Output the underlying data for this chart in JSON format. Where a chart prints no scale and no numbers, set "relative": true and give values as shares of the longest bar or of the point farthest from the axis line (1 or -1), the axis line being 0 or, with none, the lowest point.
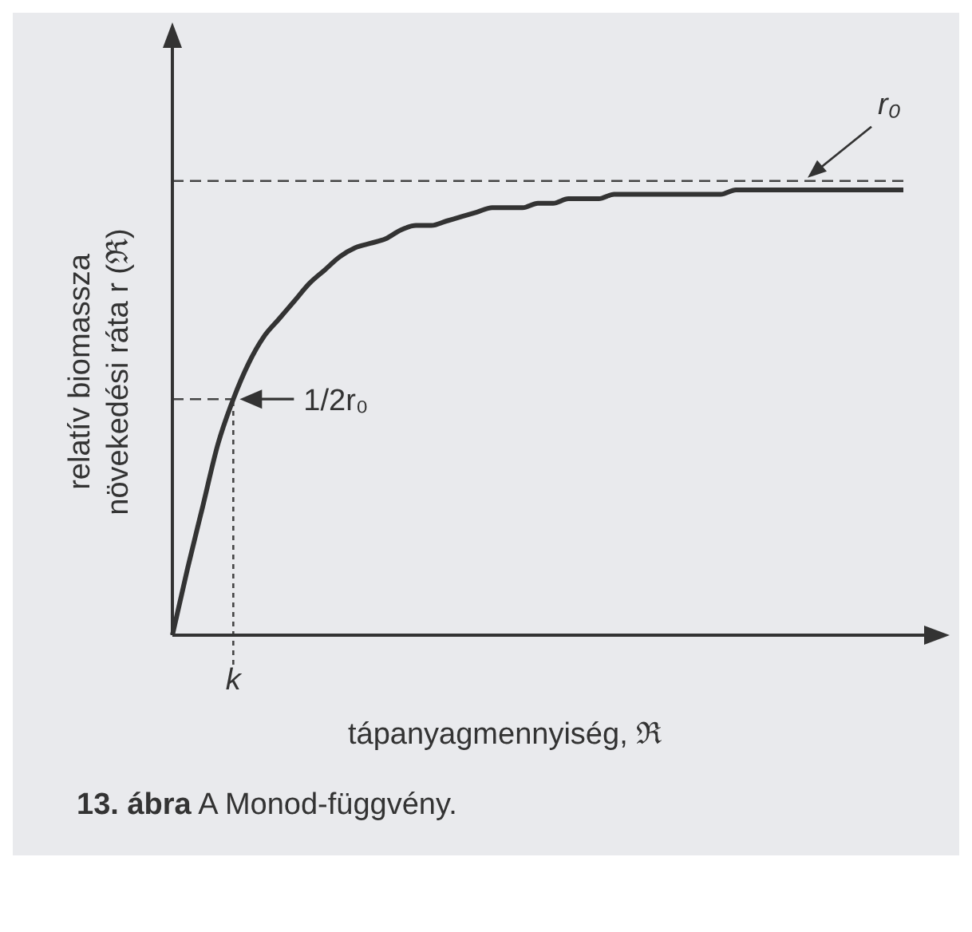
{
  "chart_data": {
    "type": "line",
    "relative": true,
    "xlabel": "tápanyagmennyiség, ℜ",
    "ylabel": "relatív biomassza növekedési ráta r (ℜ)",
    "categories": [
      null,
      null,
      null,
      null,
      null,
      null,
      null,
      null,
      null,
      null,
      null,
      null,
      null,
      null,
      null,
      null,
      null,
      null,
      null,
      null,
      null,
      null,
      null,
      null,
      null,
      null,
      null,
      null,
      null,
      null,
      null,
      null,
      null,
      null,
      null,
      null,
      null,
      null,
      null,
      null,
      null,
      null,
      null,
      null,
      null,
      null,
      null,
      null,
      null
    ],
    "series": [
      {
        "color": "#333333",
        "values": [
          0,
          0.15,
          0.29,
          0.43,
          0.53,
          0.61,
          0.67,
          0.71,
          0.75,
          0.79,
          0.82,
          0.85,
          0.87,
          0.88,
          0.89,
          0.91,
          0.92,
          0.92,
          0.93,
          0.94,
          0.95,
          0.96,
          0.96,
          0.96,
          0.97,
          0.97,
          0.98,
          0.98,
          0.98,
          0.99,
          0.99,
          0.99,
          0.99,
          0.99,
          0.99,
          0.99,
          0.99,
          1,
          1,
          1,
          1,
          1,
          1,
          1,
          1,
          1,
          1,
          1,
          1
        ]
      }
    ],
    "ref_lines": [
      {
        "axis": "y",
        "value": 1.02,
        "label": "r₀",
        "line_style": "dashed",
        "color": "#444444"
      },
      {
        "axis": "y",
        "value": 0.53,
        "label": "1/2r₀",
        "line_style": "dashed",
        "color": "#444444"
      },
      {
        "axis": "x",
        "label": "k",
        "line_style": "dotted",
        "color": "#444444"
      }
    ],
    "annotations": [
      "13. ábra  A Monod-függvény."
    ]
  }
}
